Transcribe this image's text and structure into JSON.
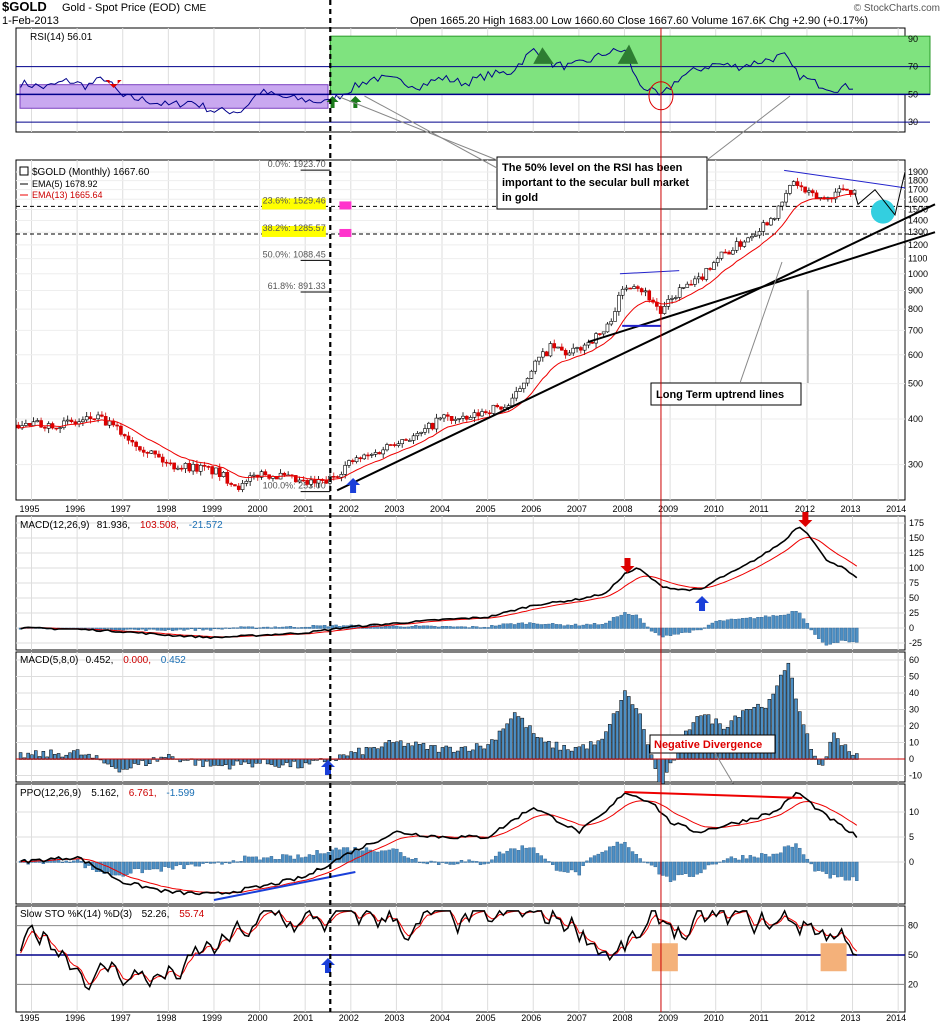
{
  "header": {
    "symbol": "$GOLD",
    "description": "Gold - Spot Price (EOD)",
    "exchange": "CME",
    "date": "1-Feb-2013",
    "ohlc": "Open 1665.20  High 1683.00  Low 1660.60  Close 1667.60  Volume 167.6K  Chg +2.90 (+0.17%)",
    "watermark": "© StockCharts.com"
  },
  "years": [
    "1995",
    "1996",
    "1997",
    "1998",
    "1999",
    "2000",
    "2001",
    "2002",
    "2003",
    "2004",
    "2005",
    "2006",
    "2007",
    "2008",
    "2009",
    "2010",
    "2011",
    "2012",
    "2013",
    "2014"
  ],
  "colors": {
    "up": "#0a7d0a",
    "down": "#d40000",
    "rsi_band_purple": "#c9a8f0",
    "rsi_band_green": "#7fe37f",
    "macd_hist": "#4d8fc4",
    "cyan": "#33cfe0",
    "orange": "#f4b17a",
    "yellow": "#ffff00",
    "magenta": "#ff33cc"
  },
  "chart_data": [
    {
      "type": "line",
      "panel": "rsi",
      "legend": "RSI(14) 56.01",
      "yticks": [
        30,
        50,
        70,
        90
      ],
      "series": [
        {
          "name": "RSI(14)",
          "x": [
            1994.8,
            1995.3,
            1995.8,
            1996.2,
            1996.6,
            1997.0,
            1997.5,
            1998.0,
            1998.5,
            1999.0,
            1999.6,
            2000.0,
            2000.5,
            2001.0,
            2001.5,
            2002.0,
            2002.5,
            2003.0,
            2003.5,
            2004.0,
            2004.5,
            2005.0,
            2005.5,
            2006.0,
            2006.4,
            2006.8,
            2007.2,
            2007.6,
            2008.0,
            2008.3,
            2008.8,
            2009.2,
            2009.6,
            2010.0,
            2010.5,
            2011.0,
            2011.5,
            2011.8,
            2012.2,
            2012.6,
            2013.0
          ],
          "values": [
            58,
            55,
            60,
            56,
            62,
            48,
            46,
            42,
            45,
            38,
            38,
            52,
            48,
            46,
            44,
            54,
            62,
            60,
            56,
            62,
            58,
            64,
            66,
            82,
            72,
            70,
            74,
            80,
            82,
            58,
            48,
            62,
            68,
            72,
            70,
            74,
            78,
            64,
            58,
            54,
            56
          ]
        }
      ],
      "annotations": [
        "The 50% level on the RSI has been important to the secular bull market in gold"
      ]
    },
    {
      "type": "candlestick",
      "panel": "price",
      "legend": "$GOLD (Monthly) 1667.60",
      "overlays": [
        "EMA(5) 1678.92",
        "EMA(13) 1665.64"
      ],
      "scale": "log",
      "yticks": [
        300,
        400,
        500,
        600,
        700,
        800,
        900,
        1000,
        1100,
        1200,
        1300,
        1400,
        1500,
        1600,
        1700,
        1800,
        1900
      ],
      "series": [
        {
          "name": "$GOLD",
          "x": [
            1994.8,
            1995.5,
            1996.0,
            1996.4,
            1996.8,
            1997.2,
            1997.6,
            1998.0,
            1998.6,
            1999.0,
            1999.6,
            2000.0,
            2000.4,
            2001.0,
            2001.5,
            2002.0,
            2002.5,
            2003.0,
            2003.5,
            2004.0,
            2004.5,
            2005.0,
            2005.5,
            2006.0,
            2006.4,
            2006.8,
            2007.2,
            2007.6,
            2008.0,
            2008.2,
            2008.6,
            2008.8,
            2009.2,
            2009.6,
            2010.0,
            2010.5,
            2011.0,
            2011.4,
            2011.7,
            2012.0,
            2012.4,
            2012.8,
            2013.1
          ],
          "values": [
            385,
            388,
            390,
            405,
            380,
            350,
            325,
            300,
            295,
            288,
            260,
            285,
            280,
            265,
            270,
            305,
            320,
            350,
            360,
            405,
            395,
            425,
            435,
            560,
            630,
            600,
            650,
            700,
            920,
            950,
            850,
            780,
            900,
            950,
            1100,
            1200,
            1350,
            1500,
            1800,
            1650,
            1600,
            1720,
            1667
          ]
        }
      ],
      "fib_levels": [
        {
          "label": "0.0%: 1923.70",
          "value": 1923.7
        },
        {
          "label": "23.6%: 1529.46",
          "value": 1529.46
        },
        {
          "label": "38.2%: 1285.57",
          "value": 1285.57
        },
        {
          "label": "50.0%: 1088.45",
          "value": 1088.45
        },
        {
          "label": "61.8%: 891.33",
          "value": 891.33
        },
        {
          "label": "100.0%: 253.00",
          "value": 253.0
        }
      ],
      "annotations": [
        "Long Term uptrend lines"
      ]
    },
    {
      "type": "line+histogram",
      "panel": "macd1",
      "legend": [
        "MACD(12,26,9)",
        "81.936,",
        "103.508,",
        "-21.572"
      ],
      "yticks": [
        -25,
        0,
        25,
        50,
        75,
        100,
        125,
        150,
        175
      ],
      "series": [
        {
          "name": "MACD(12,26,9)",
          "x": [
            1994.8,
            1996.0,
            1997.0,
            1998.0,
            1999.0,
            2000.0,
            2001.0,
            2002.0,
            2003.0,
            2004.0,
            2005.0,
            2006.0,
            2007.0,
            2007.6,
            2008.0,
            2008.3,
            2008.8,
            2009.2,
            2009.7,
            2010.0,
            2010.5,
            2011.0,
            2011.5,
            2011.8,
            2012.0,
            2012.4,
            2012.8,
            2013.1
          ],
          "values": [
            0,
            -2,
            -6,
            -12,
            -16,
            -12,
            -8,
            2,
            8,
            14,
            18,
            38,
            48,
            58,
            90,
            100,
            70,
            64,
            64,
            80,
            98,
            120,
            145,
            170,
            160,
            115,
            100,
            82
          ]
        }
      ]
    },
    {
      "type": "histogram",
      "panel": "macd2",
      "legend": [
        "MACD(5,8,0)",
        "0.452,",
        "0.000,",
        "0.452"
      ],
      "yticks": [
        -10,
        0,
        10,
        20,
        30,
        40,
        50,
        60
      ],
      "annotations": [
        "Negative Divergence"
      ]
    },
    {
      "type": "line+histogram",
      "panel": "ppo",
      "legend": [
        "PPO(12,26,9)",
        "5.162,",
        "6.761,",
        "-1.599"
      ],
      "yticks": [
        0,
        5,
        10
      ]
    },
    {
      "type": "line",
      "panel": "sto",
      "legend": [
        "Slow STO %K(14) %D(3)",
        "52.26,",
        "55.74"
      ],
      "yticks": [
        20,
        50,
        80
      ]
    }
  ]
}
